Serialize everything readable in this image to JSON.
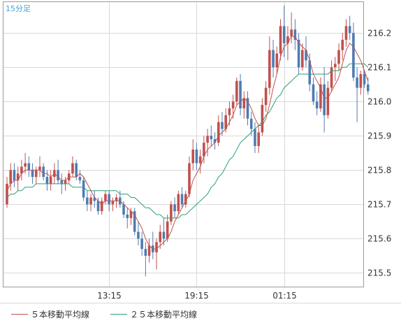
{
  "timeframe_label": "15分足",
  "legend": [
    {
      "label": "５本移動平均線",
      "color": "#c0504d"
    },
    {
      "label": "２５本移動平均線",
      "color": "#2e9e76"
    }
  ],
  "colors": {
    "up": "#c0504d",
    "down": "#4f7cb2",
    "grid": "#d9d9d9",
    "axis": "#9a9a9a",
    "timeframe": "#3aa6d8"
  },
  "chart_data": {
    "type": "candlestick",
    "x_ticks": [
      {
        "label": "13:15",
        "index": 28
      },
      {
        "label": "19:15",
        "index": 52
      },
      {
        "label": "01:15",
        "index": 76
      }
    ],
    "y_ticks": [
      "216.2",
      "216.1",
      "216.0",
      "215.9",
      "215.8",
      "215.7",
      "215.6",
      "215.5"
    ],
    "ylim": [
      215.46,
      216.29
    ],
    "candles": [
      [
        215.7,
        215.78,
        215.69,
        215.76
      ],
      [
        215.76,
        215.82,
        215.74,
        215.8
      ],
      [
        215.8,
        215.82,
        215.75,
        215.77
      ],
      [
        215.77,
        215.81,
        215.74,
        215.79
      ],
      [
        215.79,
        215.83,
        215.77,
        215.81
      ],
      [
        215.81,
        215.85,
        215.79,
        215.82
      ],
      [
        215.82,
        215.84,
        215.78,
        215.8
      ],
      [
        215.8,
        215.82,
        215.76,
        215.78
      ],
      [
        215.78,
        215.81,
        215.76,
        215.8
      ],
      [
        215.8,
        215.84,
        215.78,
        215.81
      ],
      [
        215.81,
        215.82,
        215.77,
        215.78
      ],
      [
        215.78,
        215.8,
        215.74,
        215.76
      ],
      [
        215.76,
        215.8,
        215.74,
        215.78
      ],
      [
        215.78,
        215.82,
        215.76,
        215.8
      ],
      [
        215.8,
        215.83,
        215.76,
        215.77
      ],
      [
        215.77,
        215.79,
        215.73,
        215.76
      ],
      [
        215.76,
        215.78,
        215.74,
        215.77
      ],
      [
        215.77,
        215.8,
        215.76,
        215.79
      ],
      [
        215.79,
        215.84,
        215.78,
        215.82
      ],
      [
        215.82,
        215.83,
        215.77,
        215.78
      ],
      [
        215.78,
        215.8,
        215.76,
        215.77
      ],
      [
        215.77,
        215.78,
        215.71,
        215.72
      ],
      [
        215.72,
        215.74,
        215.68,
        215.7
      ],
      [
        215.7,
        215.73,
        215.68,
        215.72
      ],
      [
        215.72,
        215.74,
        215.69,
        215.71
      ],
      [
        215.71,
        215.72,
        215.67,
        215.68
      ],
      [
        215.68,
        215.72,
        215.67,
        215.71
      ],
      [
        215.71,
        215.74,
        215.7,
        215.73
      ],
      [
        215.73,
        215.74,
        215.68,
        215.7
      ],
      [
        215.7,
        215.72,
        215.68,
        215.71
      ],
      [
        215.71,
        215.73,
        215.69,
        215.72
      ],
      [
        215.72,
        215.74,
        215.69,
        215.7
      ],
      [
        215.7,
        215.71,
        215.66,
        215.67
      ],
      [
        215.67,
        215.69,
        215.63,
        215.66
      ],
      [
        215.66,
        215.69,
        215.64,
        215.68
      ],
      [
        215.68,
        215.69,
        215.61,
        215.62
      ],
      [
        215.62,
        215.65,
        215.58,
        215.6
      ],
      [
        215.6,
        215.62,
        215.55,
        215.57
      ],
      [
        215.57,
        215.59,
        215.49,
        215.55
      ],
      [
        215.55,
        215.6,
        215.53,
        215.58
      ],
      [
        215.58,
        215.62,
        215.54,
        215.56
      ],
      [
        215.56,
        215.6,
        215.51,
        215.59
      ],
      [
        215.59,
        215.64,
        215.57,
        215.62
      ],
      [
        215.62,
        215.66,
        215.58,
        215.6
      ],
      [
        215.6,
        215.67,
        215.59,
        215.65
      ],
      [
        215.65,
        215.71,
        215.64,
        215.7
      ],
      [
        215.7,
        215.72,
        215.66,
        215.68
      ],
      [
        215.68,
        215.74,
        215.67,
        215.73
      ],
      [
        215.73,
        215.75,
        215.69,
        215.7
      ],
      [
        215.7,
        215.74,
        215.69,
        215.73
      ],
      [
        215.73,
        215.84,
        215.72,
        215.82
      ],
      [
        215.82,
        215.89,
        215.8,
        215.86
      ],
      [
        215.86,
        215.88,
        215.8,
        215.82
      ],
      [
        215.82,
        215.86,
        215.79,
        215.84
      ],
      [
        215.84,
        215.9,
        215.82,
        215.88
      ],
      [
        215.88,
        215.92,
        215.84,
        215.9
      ],
      [
        215.9,
        215.93,
        215.87,
        215.89
      ],
      [
        215.89,
        215.91,
        215.86,
        215.88
      ],
      [
        215.88,
        215.96,
        215.87,
        215.94
      ],
      [
        215.94,
        215.97,
        215.9,
        215.92
      ],
      [
        215.92,
        215.98,
        215.91,
        215.96
      ],
      [
        215.96,
        216.0,
        215.93,
        215.98
      ],
      [
        215.98,
        216.02,
        215.95,
        216.0
      ],
      [
        216.0,
        216.07,
        215.99,
        216.06
      ],
      [
        216.06,
        216.08,
        215.96,
        215.98
      ],
      [
        215.98,
        216.03,
        215.95,
        216.01
      ],
      [
        216.01,
        216.03,
        215.93,
        215.95
      ],
      [
        215.95,
        215.97,
        215.9,
        215.92
      ],
      [
        215.92,
        215.94,
        215.85,
        215.87
      ],
      [
        215.87,
        215.93,
        215.85,
        215.91
      ],
      [
        215.91,
        216.01,
        215.9,
        215.99
      ],
      [
        215.99,
        216.06,
        215.97,
        216.04
      ],
      [
        216.04,
        216.19,
        216.02,
        216.15
      ],
      [
        216.15,
        216.18,
        216.07,
        216.1
      ],
      [
        216.1,
        216.16,
        216.08,
        216.14
      ],
      [
        216.14,
        216.24,
        216.12,
        216.22
      ],
      [
        216.22,
        216.28,
        216.13,
        216.17
      ],
      [
        216.17,
        216.22,
        216.12,
        216.19
      ],
      [
        216.19,
        216.26,
        216.17,
        216.21
      ],
      [
        216.21,
        216.24,
        216.15,
        216.18
      ],
      [
        216.18,
        216.2,
        216.08,
        216.1
      ],
      [
        216.1,
        216.17,
        216.09,
        216.15
      ],
      [
        216.15,
        216.19,
        216.1,
        216.12
      ],
      [
        216.12,
        216.14,
        216.03,
        216.05
      ],
      [
        216.05,
        216.07,
        215.99,
        216.0
      ],
      [
        216.0,
        216.03,
        215.96,
        215.98
      ],
      [
        215.98,
        216.07,
        215.97,
        216.05
      ],
      [
        216.05,
        216.1,
        215.91,
        215.96
      ],
      [
        215.96,
        216.06,
        215.95,
        216.04
      ],
      [
        216.04,
        216.12,
        216.03,
        216.1
      ],
      [
        216.1,
        216.13,
        216.06,
        216.11
      ],
      [
        216.11,
        216.17,
        216.09,
        216.15
      ],
      [
        216.15,
        216.2,
        216.12,
        216.18
      ],
      [
        216.18,
        216.24,
        216.16,
        216.22
      ],
      [
        216.22,
        216.25,
        216.18,
        216.2
      ],
      [
        216.2,
        216.23,
        216.06,
        216.07
      ],
      [
        216.07,
        216.1,
        215.94,
        216.04
      ],
      [
        216.04,
        216.09,
        216.02,
        216.08
      ],
      [
        216.08,
        216.09,
        216.04,
        216.05
      ],
      [
        216.05,
        216.07,
        216.02,
        216.03
      ]
    ],
    "ma5": [
      215.74,
      215.76,
      215.77,
      215.77,
      215.79,
      215.8,
      215.8,
      215.8,
      215.8,
      215.8,
      215.79,
      215.79,
      215.78,
      215.79,
      215.78,
      215.77,
      215.77,
      215.78,
      215.78,
      215.78,
      215.79,
      215.78,
      215.76,
      215.74,
      215.72,
      215.71,
      215.7,
      215.71,
      215.71,
      215.71,
      215.71,
      215.71,
      215.7,
      215.69,
      215.68,
      215.67,
      215.65,
      215.63,
      215.6,
      215.58,
      215.57,
      215.57,
      215.58,
      215.59,
      215.6,
      215.62,
      215.65,
      215.67,
      215.69,
      215.71,
      215.73,
      215.77,
      215.79,
      215.81,
      215.84,
      215.86,
      215.87,
      215.88,
      215.9,
      215.91,
      215.92,
      215.94,
      215.96,
      215.99,
      216.0,
      216.01,
      216.0,
      215.98,
      215.95,
      215.93,
      215.93,
      215.95,
      215.99,
      216.04,
      216.08,
      216.13,
      216.16,
      216.17,
      216.19,
      216.19,
      216.17,
      216.16,
      216.15,
      216.12,
      216.08,
      216.06,
      216.04,
      216.01,
      216.01,
      216.03,
      216.05,
      216.07,
      216.11,
      216.15,
      216.17,
      216.16,
      216.14,
      216.12,
      216.09,
      216.06
    ],
    "ma25": [
      215.72,
      215.73,
      215.73,
      215.74,
      215.74,
      215.75,
      215.75,
      215.75,
      215.76,
      215.76,
      215.76,
      215.76,
      215.76,
      215.76,
      215.76,
      215.76,
      215.76,
      215.76,
      215.75,
      215.75,
      215.75,
      215.75,
      215.74,
      215.74,
      215.74,
      215.74,
      215.74,
      215.74,
      215.74,
      215.74,
      215.74,
      215.73,
      215.73,
      215.73,
      215.72,
      215.72,
      215.71,
      215.7,
      215.69,
      215.69,
      215.68,
      215.67,
      215.67,
      215.66,
      215.66,
      215.66,
      215.66,
      215.66,
      215.67,
      215.67,
      215.68,
      215.69,
      215.7,
      215.71,
      215.72,
      215.73,
      215.75,
      215.76,
      215.78,
      215.79,
      215.81,
      215.83,
      215.84,
      215.86,
      215.88,
      215.89,
      215.9,
      215.91,
      215.92,
      215.93,
      215.94,
      215.96,
      215.97,
      215.99,
      216.01,
      216.02,
      216.04,
      216.05,
      216.06,
      216.07,
      216.08,
      216.08,
      216.08,
      216.08,
      216.08,
      216.08,
      216.08,
      216.08,
      216.08,
      216.09,
      216.09,
      216.09,
      216.1,
      216.1,
      216.11,
      216.11,
      216.11,
      216.11,
      216.11,
      216.1
    ]
  }
}
